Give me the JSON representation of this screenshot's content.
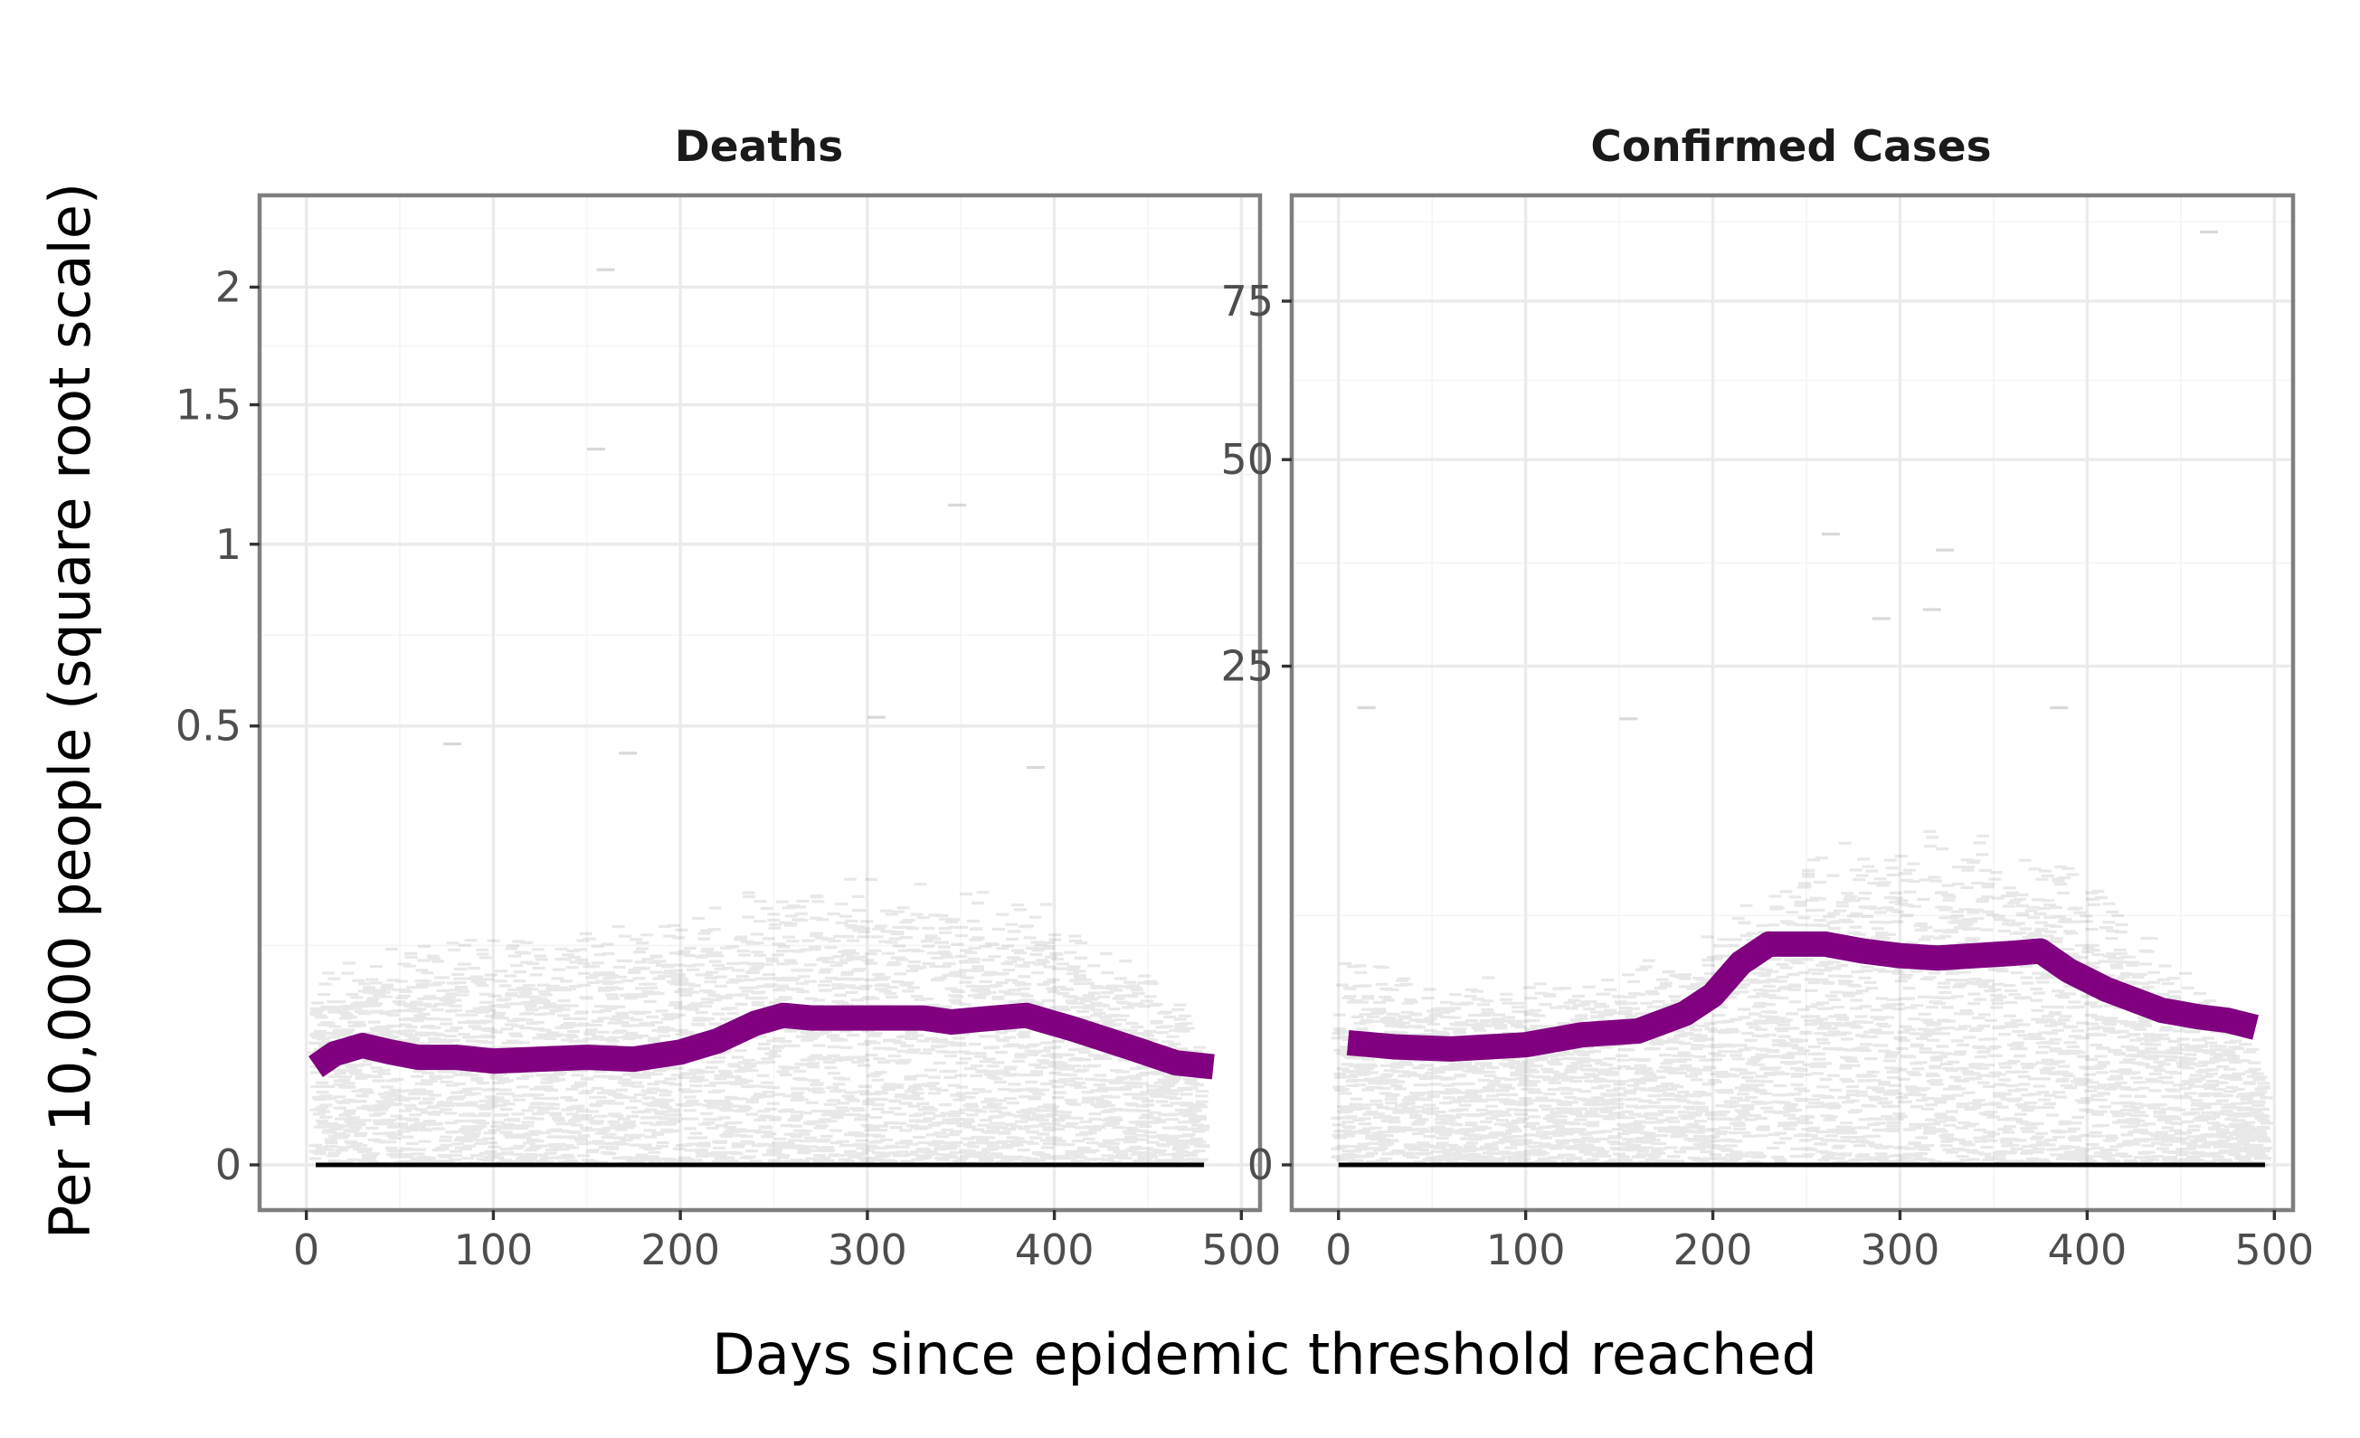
{
  "chart_data": {
    "type": "scatter",
    "xlabel": "Days since epidemic threshold reached",
    "ylabel": "Per 10,000 people (square root scale)",
    "y_scale": "sqrt",
    "grid": true,
    "point_style": "semi-transparent horizontal dashes, one per observation",
    "point_color": "#000000",
    "trend_color": "#800080",
    "xlim": [
      -25,
      510
    ],
    "xticks": [
      0,
      100,
      200,
      300,
      400,
      500
    ],
    "facets": [
      {
        "title": "Deaths",
        "ylim": [
          0,
          2.35
        ],
        "yticks": [
          0,
          0.5,
          1,
          1.5,
          2
        ],
        "ytick_labels": [
          "0",
          "0.5",
          "1",
          "1.5",
          "2"
        ],
        "scatter_bands": [
          {
            "x_start": 5,
            "x_end": 480,
            "upper": [
              0.08,
              0.12,
              0.13,
              0.13,
              0.14,
              0.18,
              0.19,
              0.18,
              0.17,
              0.12,
              0.04
            ]
          }
        ],
        "trend": {
          "x": [
            5,
            15,
            30,
            45,
            60,
            80,
            100,
            125,
            150,
            175,
            200,
            220,
            240,
            255,
            270,
            300,
            330,
            345,
            360,
            385,
            410,
            440,
            465,
            485
          ],
          "y": [
            0.025,
            0.032,
            0.037,
            0.033,
            0.03,
            0.03,
            0.028,
            0.029,
            0.03,
            0.029,
            0.033,
            0.04,
            0.052,
            0.058,
            0.056,
            0.056,
            0.056,
            0.053,
            0.055,
            0.058,
            0.048,
            0.036,
            0.027,
            0.025
          ]
        },
        "outliers": [
          {
            "x": 160,
            "y": 2.08
          },
          {
            "x": 155,
            "y": 1.33
          },
          {
            "x": 348,
            "y": 1.13
          },
          {
            "x": 78,
            "y": 0.46
          },
          {
            "x": 172,
            "y": 0.44
          },
          {
            "x": 305,
            "y": 0.52
          },
          {
            "x": 390,
            "y": 0.41
          }
        ]
      },
      {
        "title": "Confirmed Cases",
        "ylim": [
          0,
          91.0
        ],
        "yticks": [
          0,
          25,
          50,
          75
        ],
        "ytick_labels": [
          "0",
          "25",
          "50",
          "75"
        ],
        "scatter_bands": [
          {
            "x_start": 0,
            "x_end": 495,
            "upper": [
              3.8,
              3.5,
              3.0,
              3.2,
              4.8,
              8.5,
              10.5,
              10.0,
              8.5,
              3.6,
              0.8
            ]
          }
        ],
        "trend": {
          "x": [
            5,
            30,
            60,
            100,
            130,
            160,
            185,
            200,
            215,
            230,
            260,
            280,
            300,
            320,
            340,
            360,
            375,
            390,
            410,
            440,
            460,
            475,
            490
          ],
          "y": [
            1.5,
            1.4,
            1.35,
            1.45,
            1.7,
            1.8,
            2.3,
            2.9,
            4.1,
            4.9,
            4.9,
            4.6,
            4.4,
            4.3,
            4.4,
            4.5,
            4.6,
            3.8,
            3.1,
            2.4,
            2.2,
            2.1,
            1.9
          ]
        },
        "outliers": [
          {
            "x": 465,
            "y": 87.5
          },
          {
            "x": 263,
            "y": 40.0
          },
          {
            "x": 324,
            "y": 38.0
          },
          {
            "x": 290,
            "y": 30.0
          },
          {
            "x": 317,
            "y": 31.0
          },
          {
            "x": 15,
            "y": 21.0
          },
          {
            "x": 155,
            "y": 20.0
          },
          {
            "x": 385,
            "y": 21.0
          }
        ]
      }
    ]
  }
}
